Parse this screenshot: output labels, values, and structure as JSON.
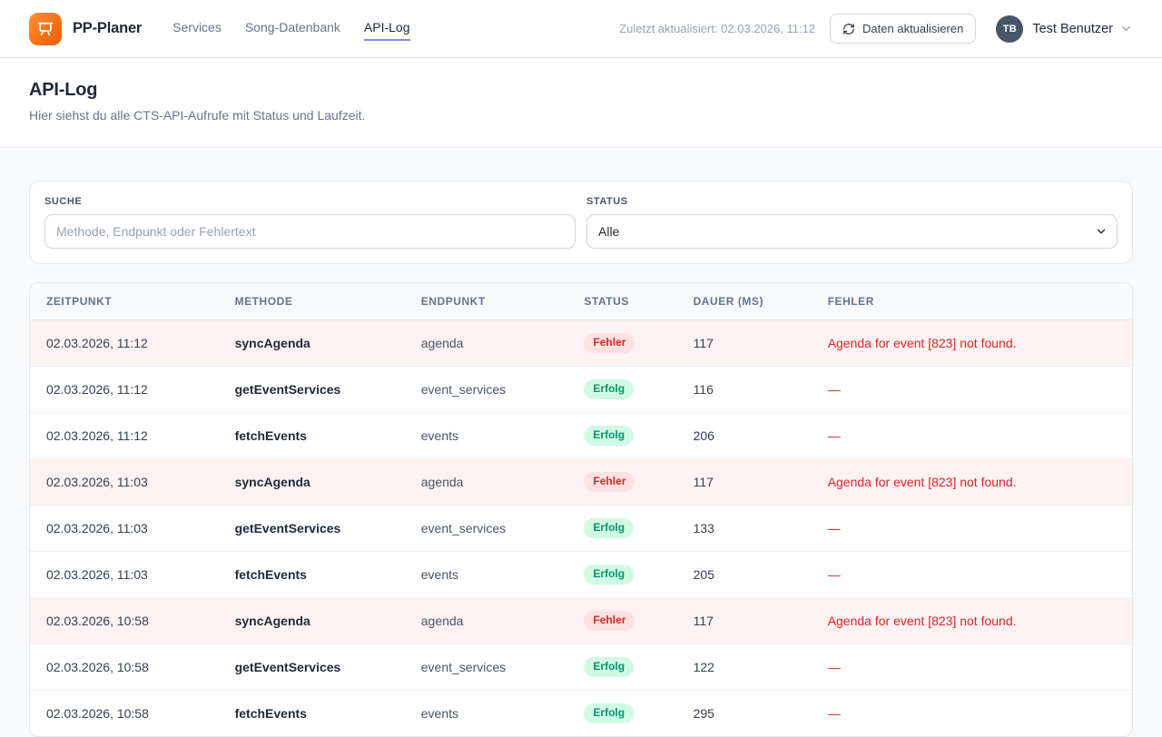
{
  "topbar": {
    "brand": "PP-Planer",
    "nav": [
      {
        "label": "Services",
        "active": false
      },
      {
        "label": "Song-Datenbank",
        "active": false
      },
      {
        "label": "API-Log",
        "active": true
      }
    ],
    "last_updated": "Zuletzt aktualisiert: 02.03.2026, 11:12",
    "refresh_label": "Daten aktualisieren",
    "user": {
      "initials": "TB",
      "name": "Test Benutzer"
    }
  },
  "page": {
    "title": "API-Log",
    "subtitle": "Hier siehst du alle CTS-API-Aufrufe mit Status und Laufzeit."
  },
  "filters": {
    "search": {
      "label": "SUCHE",
      "placeholder": "Methode, Endpunkt oder Fehlertext",
      "value": ""
    },
    "status": {
      "label": "STATUS",
      "selected": "Alle",
      "options": [
        "Alle"
      ]
    }
  },
  "table": {
    "columns": [
      "ZEITPUNKT",
      "METHODE",
      "ENDPUNKT",
      "STATUS",
      "DAUER (MS)",
      "FEHLER"
    ],
    "rows": [
      {
        "zeitpunkt": "02.03.2026, 11:12",
        "methode": "syncAgenda",
        "endpunkt": "agenda",
        "status": "Fehler",
        "status_type": "error",
        "dauer": "117",
        "fehler": "Agenda for event [823] not found."
      },
      {
        "zeitpunkt": "02.03.2026, 11:12",
        "methode": "getEventServices",
        "endpunkt": "event_services",
        "status": "Erfolg",
        "status_type": "success",
        "dauer": "116",
        "fehler": "—"
      },
      {
        "zeitpunkt": "02.03.2026, 11:12",
        "methode": "fetchEvents",
        "endpunkt": "events",
        "status": "Erfolg",
        "status_type": "success",
        "dauer": "206",
        "fehler": "—"
      },
      {
        "zeitpunkt": "02.03.2026, 11:03",
        "methode": "syncAgenda",
        "endpunkt": "agenda",
        "status": "Fehler",
        "status_type": "error",
        "dauer": "117",
        "fehler": "Agenda for event [823] not found."
      },
      {
        "zeitpunkt": "02.03.2026, 11:03",
        "methode": "getEventServices",
        "endpunkt": "event_services",
        "status": "Erfolg",
        "status_type": "success",
        "dauer": "133",
        "fehler": "—"
      },
      {
        "zeitpunkt": "02.03.2026, 11:03",
        "methode": "fetchEvents",
        "endpunkt": "events",
        "status": "Erfolg",
        "status_type": "success",
        "dauer": "205",
        "fehler": "—"
      },
      {
        "zeitpunkt": "02.03.2026, 10:58",
        "methode": "syncAgenda",
        "endpunkt": "agenda",
        "status": "Fehler",
        "status_type": "error",
        "dauer": "117",
        "fehler": "Agenda for event [823] not found."
      },
      {
        "zeitpunkt": "02.03.2026, 10:58",
        "methode": "getEventServices",
        "endpunkt": "event_services",
        "status": "Erfolg",
        "status_type": "success",
        "dauer": "122",
        "fehler": "—"
      },
      {
        "zeitpunkt": "02.03.2026, 10:58",
        "methode": "fetchEvents",
        "endpunkt": "events",
        "status": "Erfolg",
        "status_type": "success",
        "dauer": "295",
        "fehler": "—"
      }
    ]
  },
  "colors": {
    "accent_orange": "#f97316",
    "active_nav_underline": "#818cf8",
    "error_text": "#dc2626",
    "error_row_bg": "#fef2f2",
    "error_badge_bg": "#fee2e2",
    "success_text": "#059669",
    "success_badge_bg": "#d1fae5"
  }
}
